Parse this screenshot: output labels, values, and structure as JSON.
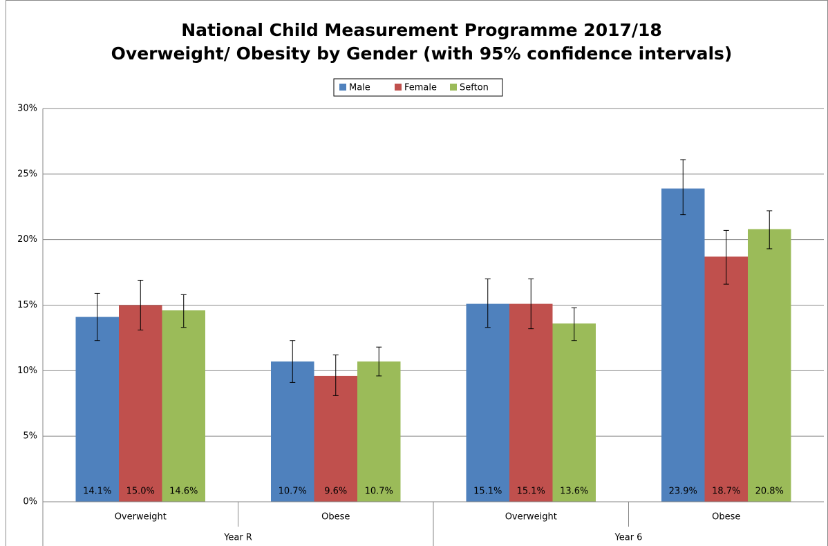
{
  "chart_data": {
    "type": "bar",
    "title": [
      "National Child Measurement Programme 2017/18",
      "Overweight/ Obesity by Gender (with 95% confidence intervals)"
    ],
    "categories": [
      "Overweight",
      "Obese",
      "Overweight",
      "Obese"
    ],
    "groups": [
      "Year R",
      "Year 6"
    ],
    "series": [
      {
        "name": "Male",
        "color": "#4f81bd",
        "values": [
          14.1,
          10.7,
          15.1,
          23.9
        ],
        "value_labels": [
          "14.1%",
          "10.7%",
          "15.1%",
          "23.9%"
        ],
        "ci_low": [
          12.3,
          9.1,
          13.3,
          21.9
        ],
        "ci_high": [
          15.9,
          12.3,
          17.0,
          26.1
        ]
      },
      {
        "name": "Female",
        "color": "#c0504d",
        "values": [
          15.0,
          9.6,
          15.1,
          18.7
        ],
        "value_labels": [
          "15.0%",
          "9.6%",
          "15.1%",
          "18.7%"
        ],
        "ci_low": [
          13.1,
          8.1,
          13.2,
          16.6
        ],
        "ci_high": [
          16.9,
          11.2,
          17.0,
          20.7
        ]
      },
      {
        "name": "Sefton",
        "color": "#9bbb59",
        "values": [
          14.6,
          10.7,
          13.6,
          20.8
        ],
        "value_labels": [
          "14.6%",
          "10.7%",
          "13.6%",
          "20.8%"
        ],
        "ci_low": [
          13.3,
          9.6,
          12.3,
          19.3
        ],
        "ci_high": [
          15.8,
          11.8,
          14.8,
          22.2
        ]
      }
    ],
    "ylim": [
      0,
      30
    ],
    "yticks": [
      {
        "value": 0,
        "label": "0%"
      },
      {
        "value": 5,
        "label": "5%"
      },
      {
        "value": 10,
        "label": "10%"
      },
      {
        "value": 15,
        "label": "15%"
      },
      {
        "value": 20,
        "label": "20%"
      },
      {
        "value": 25,
        "label": "25%"
      },
      {
        "value": 30,
        "label": "30%"
      }
    ],
    "grid": true,
    "legend": "top"
  }
}
